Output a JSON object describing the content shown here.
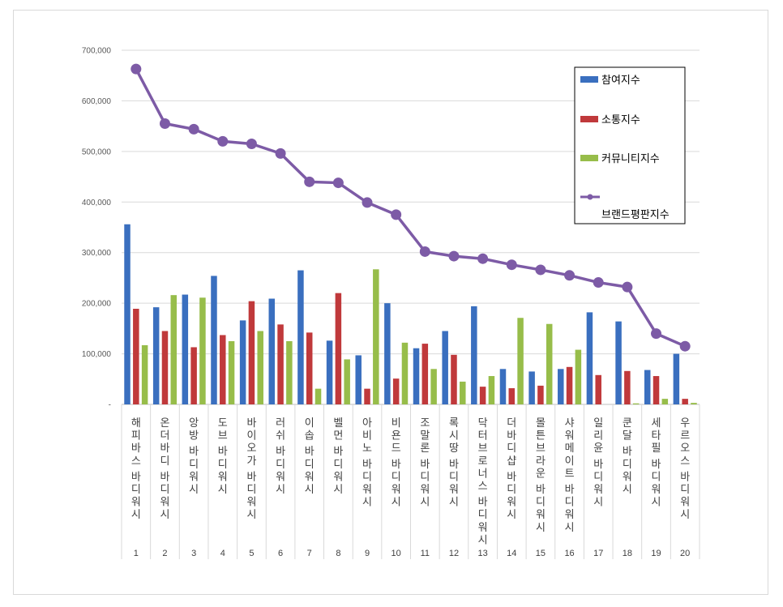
{
  "chart_data": {
    "type": "bar",
    "title": "",
    "xlabel": "",
    "ylabel": "",
    "ylim": [
      0,
      700000
    ],
    "yticks": [
      0,
      100000,
      200000,
      300000,
      400000,
      500000,
      600000,
      700000
    ],
    "ytick_labels": [
      "-",
      "100,000",
      "200,000",
      "300,000",
      "400,000",
      "500,000",
      "600,000",
      "700,000"
    ],
    "grid": true,
    "legend_position": "top-right",
    "ranks": [
      "1",
      "2",
      "3",
      "4",
      "5",
      "6",
      "7",
      "8",
      "9",
      "10",
      "11",
      "12",
      "13",
      "14",
      "15",
      "16",
      "17",
      "18",
      "19",
      "20"
    ],
    "categories": [
      "해피바스 바디워시",
      "온더바디 바디워시",
      "앙방 바디워시",
      "도브 바디워시",
      "바이오가 바디워시",
      "러쉬 바디워시",
      "이솝 바디워시",
      "벨먼 바디워시",
      "아비노 바디워시",
      "비욘드 바디워시",
      "조말론 바디워시",
      "록시땅 바디워시",
      "닥터브로너스 바디워시",
      "더바디샵 바디워시",
      "몰튼브라운 바디워시",
      "샤워메이트 바디워시",
      "일리윤 바디워시",
      "쿤달 바디워시",
      "세타필 바디워시",
      "우르오스 바디워시"
    ],
    "series": [
      {
        "name": "참여지수",
        "type": "bar",
        "color": "#3a6fbf",
        "values": [
          356000,
          192000,
          217000,
          254000,
          166000,
          209000,
          265000,
          126000,
          97000,
          200000,
          111000,
          145000,
          194000,
          70000,
          65000,
          70000,
          182000,
          164000,
          68000,
          100000
        ]
      },
      {
        "name": "소통지수",
        "type": "bar",
        "color": "#c0393b",
        "values": [
          189000,
          145000,
          113000,
          137000,
          204000,
          158000,
          142000,
          220000,
          31000,
          51000,
          120000,
          98000,
          35000,
          32000,
          37000,
          74000,
          58000,
          66000,
          56000,
          11000
        ]
      },
      {
        "name": "커뮤니티지수",
        "type": "bar",
        "color": "#97bd4a",
        "values": [
          117000,
          216000,
          211000,
          125000,
          145000,
          125000,
          31000,
          89000,
          267000,
          122000,
          70000,
          45000,
          56000,
          171000,
          159000,
          108000,
          0,
          2000,
          11000,
          3000
        ]
      },
      {
        "name": "브랜드평판지수",
        "type": "line",
        "color": "#7d5ba6",
        "values": [
          663000,
          555000,
          544000,
          520000,
          515000,
          496000,
          440000,
          438000,
          399000,
          375000,
          302000,
          293000,
          288000,
          276000,
          266000,
          255000,
          241000,
          232000,
          140000,
          115000
        ]
      }
    ]
  }
}
